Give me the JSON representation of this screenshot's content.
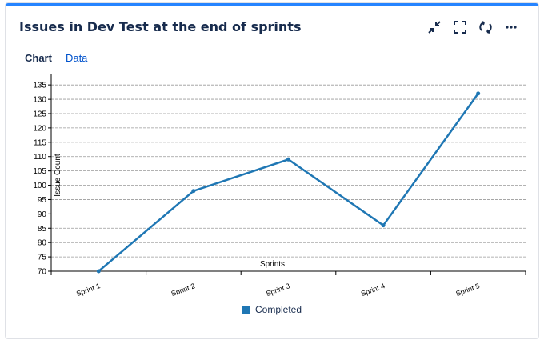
{
  "gadget": {
    "title": "Issues in Dev Test at the end of sprints",
    "accent": "#2684ff"
  },
  "toolbar": {
    "icons": [
      "minimize-icon",
      "fullscreen-icon",
      "refresh-icon",
      "more-icon"
    ]
  },
  "tabs": [
    {
      "label": "Chart",
      "active": true
    },
    {
      "label": "Data",
      "active": false
    }
  ],
  "chart_data": {
    "type": "line",
    "categories": [
      "Sprint 1",
      "Sprint 2",
      "Sprint 3",
      "Sprint 4",
      "Sprint 5"
    ],
    "series": [
      {
        "name": "Completed",
        "values": [
          70,
          98,
          109,
          86,
          132
        ],
        "color": "#1f77b4"
      }
    ],
    "xlabel": "Sprints",
    "ylabel": "Issue Count",
    "ylim": [
      70,
      137
    ],
    "yticks": [
      70,
      75,
      80,
      85,
      90,
      95,
      100,
      105,
      110,
      115,
      120,
      125,
      130,
      135
    ],
    "grid": true,
    "legend": "bottom"
  }
}
